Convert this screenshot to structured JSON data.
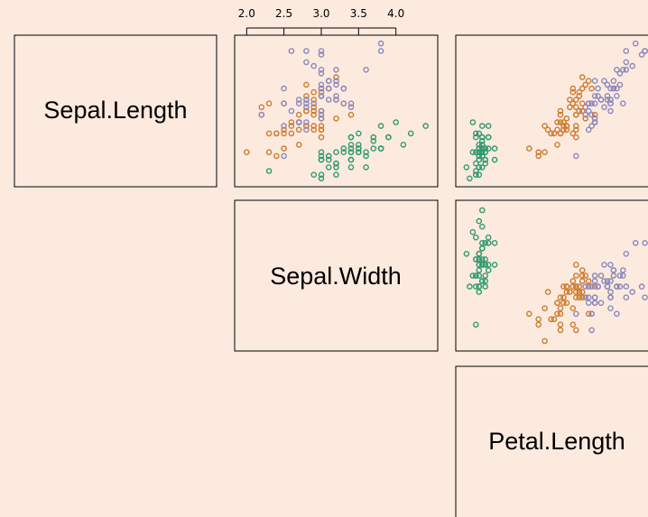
{
  "chart_data": {
    "type": "scatter",
    "title": "",
    "variables": [
      "Sepal.Length",
      "Sepal.Width",
      "Petal.Length"
    ],
    "top_axis_ticks": [
      "2.0",
      "2.5",
      "3.0",
      "3.5",
      "4.0"
    ],
    "colors": {
      "setosa": "#2e9a6e",
      "versicolor": "#cc7a2e",
      "virginica": "#8a86bb",
      "background": "#fdeadf",
      "frame": "#000000"
    },
    "axis_ranges": {
      "Sepal.Length": [
        4.2,
        8.0
      ],
      "Sepal.Width": [
        1.9,
        4.5
      ],
      "Petal.Length": [
        0.8,
        7.0
      ]
    },
    "series": [
      {
        "key": "setosa",
        "points": [
          [
            5.1,
            3.5,
            1.4
          ],
          [
            4.9,
            3.0,
            1.4
          ],
          [
            4.7,
            3.2,
            1.3
          ],
          [
            4.6,
            3.1,
            1.5
          ],
          [
            5.0,
            3.6,
            1.4
          ],
          [
            5.4,
            3.9,
            1.7
          ],
          [
            4.6,
            3.4,
            1.4
          ],
          [
            5.0,
            3.4,
            1.5
          ],
          [
            4.4,
            2.9,
            1.4
          ],
          [
            4.9,
            3.1,
            1.5
          ],
          [
            5.4,
            3.7,
            1.5
          ],
          [
            4.8,
            3.4,
            1.6
          ],
          [
            4.8,
            3.0,
            1.4
          ],
          [
            4.3,
            3.0,
            1.1
          ],
          [
            5.8,
            4.0,
            1.2
          ],
          [
            5.7,
            4.4,
            1.5
          ],
          [
            5.4,
            3.9,
            1.3
          ],
          [
            5.1,
            3.5,
            1.4
          ],
          [
            5.7,
            3.8,
            1.7
          ],
          [
            5.1,
            3.8,
            1.5
          ],
          [
            5.4,
            3.4,
            1.7
          ],
          [
            5.1,
            3.7,
            1.5
          ],
          [
            4.6,
            3.6,
            1.0
          ],
          [
            5.1,
            3.3,
            1.7
          ],
          [
            4.8,
            3.4,
            1.9
          ],
          [
            5.0,
            3.0,
            1.6
          ],
          [
            5.0,
            3.4,
            1.6
          ],
          [
            5.2,
            3.5,
            1.5
          ],
          [
            5.2,
            3.4,
            1.4
          ],
          [
            4.7,
            3.2,
            1.6
          ],
          [
            4.8,
            3.1,
            1.6
          ],
          [
            5.4,
            3.4,
            1.5
          ],
          [
            5.2,
            4.1,
            1.5
          ],
          [
            5.5,
            4.2,
            1.4
          ],
          [
            4.9,
            3.1,
            1.5
          ],
          [
            5.0,
            3.2,
            1.2
          ],
          [
            5.5,
            3.5,
            1.3
          ],
          [
            4.9,
            3.6,
            1.4
          ],
          [
            4.4,
            3.0,
            1.3
          ],
          [
            5.1,
            3.4,
            1.5
          ],
          [
            5.0,
            3.5,
            1.3
          ],
          [
            4.5,
            2.3,
            1.3
          ],
          [
            4.4,
            3.2,
            1.3
          ],
          [
            5.0,
            3.5,
            1.6
          ],
          [
            5.1,
            3.8,
            1.9
          ],
          [
            4.8,
            3.0,
            1.4
          ],
          [
            5.1,
            3.8,
            1.6
          ],
          [
            4.6,
            3.2,
            1.4
          ],
          [
            5.3,
            3.7,
            1.5
          ],
          [
            5.0,
            3.3,
            1.4
          ]
        ]
      },
      {
        "key": "versicolor",
        "points": [
          [
            7.0,
            3.2,
            4.7
          ],
          [
            6.4,
            3.2,
            4.5
          ],
          [
            6.9,
            3.1,
            4.9
          ],
          [
            5.5,
            2.3,
            4.0
          ],
          [
            6.5,
            2.8,
            4.6
          ],
          [
            5.7,
            2.8,
            4.5
          ],
          [
            6.3,
            3.3,
            4.7
          ],
          [
            4.9,
            2.4,
            3.3
          ],
          [
            6.6,
            2.9,
            4.6
          ],
          [
            5.2,
            2.7,
            3.9
          ],
          [
            5.0,
            2.0,
            3.5
          ],
          [
            5.9,
            3.0,
            4.2
          ],
          [
            6.0,
            2.2,
            4.0
          ],
          [
            6.1,
            2.9,
            4.7
          ],
          [
            5.6,
            2.9,
            3.6
          ],
          [
            6.7,
            3.1,
            4.4
          ],
          [
            5.6,
            3.0,
            4.5
          ],
          [
            5.8,
            2.7,
            4.1
          ],
          [
            6.2,
            2.2,
            4.5
          ],
          [
            5.6,
            2.5,
            3.9
          ],
          [
            5.9,
            3.2,
            4.8
          ],
          [
            6.1,
            2.8,
            4.0
          ],
          [
            6.3,
            2.5,
            4.9
          ],
          [
            6.1,
            2.8,
            4.7
          ],
          [
            6.4,
            2.9,
            4.3
          ],
          [
            6.6,
            3.0,
            4.4
          ],
          [
            6.8,
            2.8,
            4.8
          ],
          [
            6.7,
            3.0,
            5.0
          ],
          [
            6.0,
            2.9,
            4.5
          ],
          [
            5.7,
            2.6,
            3.5
          ],
          [
            5.5,
            2.4,
            3.8
          ],
          [
            5.5,
            2.4,
            3.7
          ],
          [
            5.8,
            2.7,
            3.9
          ],
          [
            6.0,
            2.7,
            5.1
          ],
          [
            5.4,
            3.0,
            4.5
          ],
          [
            6.0,
            3.4,
            4.5
          ],
          [
            6.7,
            3.1,
            4.7
          ],
          [
            6.3,
            2.3,
            4.4
          ],
          [
            5.6,
            3.0,
            4.1
          ],
          [
            5.5,
            2.5,
            4.0
          ],
          [
            5.5,
            2.6,
            4.4
          ],
          [
            6.1,
            3.0,
            4.6
          ],
          [
            5.8,
            2.6,
            4.0
          ],
          [
            5.0,
            2.3,
            3.3
          ],
          [
            5.6,
            2.7,
            4.2
          ],
          [
            5.7,
            3.0,
            4.2
          ],
          [
            5.7,
            2.9,
            4.2
          ],
          [
            6.2,
            2.9,
            4.3
          ],
          [
            5.1,
            2.5,
            3.0
          ],
          [
            5.7,
            2.8,
            4.1
          ]
        ]
      },
      {
        "key": "virginica",
        "points": [
          [
            6.3,
            3.3,
            6.0
          ],
          [
            5.8,
            2.7,
            5.1
          ],
          [
            7.1,
            3.0,
            5.9
          ],
          [
            6.3,
            2.9,
            5.6
          ],
          [
            6.5,
            3.0,
            5.8
          ],
          [
            7.6,
            3.0,
            6.6
          ],
          [
            4.9,
            2.5,
            4.5
          ],
          [
            7.3,
            2.9,
            6.3
          ],
          [
            6.7,
            2.5,
            5.8
          ],
          [
            7.2,
            3.6,
            6.1
          ],
          [
            6.5,
            3.2,
            5.1
          ],
          [
            6.4,
            2.7,
            5.3
          ],
          [
            6.8,
            3.0,
            5.5
          ],
          [
            5.7,
            2.5,
            5.0
          ],
          [
            5.8,
            2.8,
            5.1
          ],
          [
            6.4,
            3.2,
            5.3
          ],
          [
            6.5,
            3.0,
            5.5
          ],
          [
            7.7,
            3.8,
            6.7
          ],
          [
            7.7,
            2.6,
            6.9
          ],
          [
            6.0,
            2.2,
            5.0
          ],
          [
            6.9,
            3.2,
            5.7
          ],
          [
            5.6,
            2.8,
            4.9
          ],
          [
            7.7,
            2.8,
            6.7
          ],
          [
            6.3,
            2.7,
            4.9
          ],
          [
            6.7,
            3.3,
            5.7
          ],
          [
            7.2,
            3.2,
            6.0
          ],
          [
            6.2,
            2.8,
            4.8
          ],
          [
            6.1,
            3.0,
            4.9
          ],
          [
            6.4,
            2.8,
            5.6
          ],
          [
            7.2,
            3.0,
            5.8
          ],
          [
            7.4,
            2.8,
            6.1
          ],
          [
            7.9,
            3.8,
            6.4
          ],
          [
            6.4,
            2.8,
            5.6
          ],
          [
            6.3,
            2.8,
            5.1
          ],
          [
            6.1,
            2.6,
            5.6
          ],
          [
            7.7,
            3.0,
            6.1
          ],
          [
            6.3,
            3.4,
            5.6
          ],
          [
            6.4,
            3.1,
            5.5
          ],
          [
            6.0,
            3.0,
            4.8
          ],
          [
            6.9,
            3.1,
            5.4
          ],
          [
            6.7,
            3.1,
            5.6
          ],
          [
            6.9,
            3.1,
            5.1
          ],
          [
            5.8,
            2.7,
            5.1
          ],
          [
            6.8,
            3.2,
            5.9
          ],
          [
            6.7,
            3.3,
            5.7
          ],
          [
            6.7,
            3.0,
            5.2
          ],
          [
            6.3,
            2.5,
            5.0
          ],
          [
            6.5,
            3.0,
            5.2
          ],
          [
            6.2,
            3.4,
            5.4
          ],
          [
            5.9,
            3.0,
            5.1
          ]
        ]
      }
    ]
  }
}
